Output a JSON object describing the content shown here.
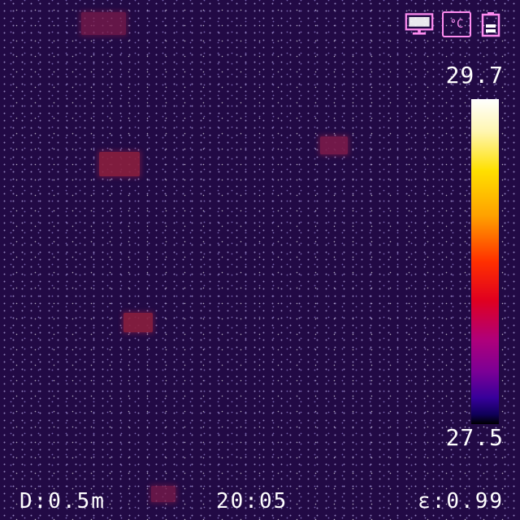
{
  "status_icons": {
    "display": "monitor-icon",
    "unit": "celsius-icon",
    "unit_label": "°C",
    "battery": "battery-icon"
  },
  "scale": {
    "max": "29.7",
    "min": "27.5",
    "palette": [
      "#ffffff",
      "#ffe000",
      "#ffa000",
      "#ff3000",
      "#b0007a",
      "#36009a",
      "#000000"
    ]
  },
  "footer": {
    "distance": "D:0.5m",
    "time": "20:05",
    "emissivity": "ε:0.99"
  },
  "colors": {
    "background": "#220a45",
    "icon_accent": "#ff8cf0",
    "text": "#ffffff"
  }
}
